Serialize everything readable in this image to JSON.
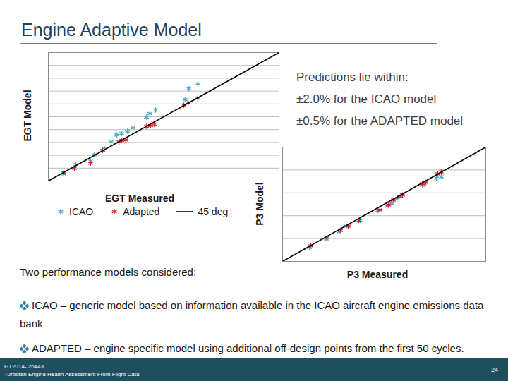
{
  "title": "Engine Adaptive Model",
  "annotation": [
    "Predictions lie within:",
    "±2.0% for the ICAO model",
    "±0.5% for the ADAPTED model"
  ],
  "chart_data": [
    {
      "type": "scatter",
      "x_label": "EGT Measured",
      "y_label": "EGT Model",
      "xlim": [
        0,
        100
      ],
      "ylim": [
        0,
        100
      ],
      "yticks": [
        0,
        10,
        20,
        30,
        40,
        50,
        60,
        70,
        80,
        90,
        100
      ],
      "grid": true,
      "tick_labels": false,
      "legend": "bottom",
      "series": [
        {
          "name": "ICAO",
          "color": "#4bacc6",
          "marker": "asterisk",
          "x": [
            6.7,
            11.9,
            18.3,
            19.9,
            24.5,
            27.2,
            29.7,
            31.8,
            34.3,
            36.7,
            42.5,
            44.0,
            46.5,
            59.3,
            60.9,
            64.8
          ],
          "values": [
            5.5,
            12.7,
            15.5,
            20.4,
            24.9,
            30.4,
            35.9,
            37.0,
            38.7,
            41.4,
            49.7,
            52.5,
            55.2,
            63.5,
            71.8,
            75.7
          ]
        },
        {
          "name": "Adapted",
          "color": "#e3262b",
          "marker": "asterisk",
          "x": [
            6.7,
            11.3,
            18.3,
            23.5,
            30.6,
            31.8,
            33.6,
            42.5,
            44.3,
            45.9,
            58.7,
            60.6,
            64.8
          ],
          "values": [
            6.6,
            9.9,
            13.8,
            23.8,
            30.4,
            31.5,
            32.0,
            42.5,
            43.1,
            44.2,
            59.1,
            60.8,
            64.6
          ]
        },
        {
          "name": "45 deg",
          "type": "line",
          "color": "#000000",
          "x": [
            0,
            100
          ],
          "values": [
            0,
            100
          ]
        }
      ]
    },
    {
      "type": "scatter",
      "x_label": "P3 Measured",
      "y_label": "P3 Model",
      "xlim": [
        0,
        100
      ],
      "ylim": [
        0,
        100
      ],
      "yticks": [
        0,
        20,
        40,
        60,
        80,
        100
      ],
      "grid": true,
      "tick_labels": false,
      "series": [
        {
          "color": "#4bacc6",
          "marker": "asterisk",
          "x": [
            13.2,
            21.5,
            27.8,
            31.3,
            38.2,
            46.9,
            51.4,
            53.8,
            56.3,
            58.3,
            68.8,
            70.5,
            75.7,
            78.1
          ],
          "values": [
            12.3,
            19.8,
            25.9,
            30.9,
            35.8,
            44.4,
            48.1,
            50.6,
            54.3,
            56.8,
            66.7,
            69.1,
            72.8,
            74.1
          ]
        },
        {
          "color": "#e3262b",
          "marker": "asterisk",
          "x": [
            13.9,
            21.9,
            28.5,
            32.3,
            37.5,
            47.9,
            52.1,
            54.5,
            57.3,
            59.0,
            68.8,
            70.5,
            76.4,
            78.1
          ],
          "values": [
            13.6,
            21.0,
            27.2,
            30.9,
            35.8,
            45.1,
            49.4,
            53.7,
            56.8,
            58.0,
            67.9,
            69.1,
            76.5,
            78.4
          ]
        },
        {
          "type": "line",
          "color": "#000000",
          "x": [
            0,
            100
          ],
          "values": [
            0,
            100
          ]
        }
      ]
    }
  ],
  "text": {
    "intro": "Two performance models considered:",
    "bullets": [
      {
        "term": "ICAO",
        "text": " – generic model based on information available in the ICAO aircraft engine emissions data bank"
      },
      {
        "term": "ADAPTED",
        "text": " – engine specific model using additional off-design points from the first 50 cycles."
      }
    ]
  },
  "footer": {
    "left": [
      "GT2014- 26443",
      "Turbofan Engine Health Assessment From Flight Data"
    ],
    "page": "24"
  }
}
